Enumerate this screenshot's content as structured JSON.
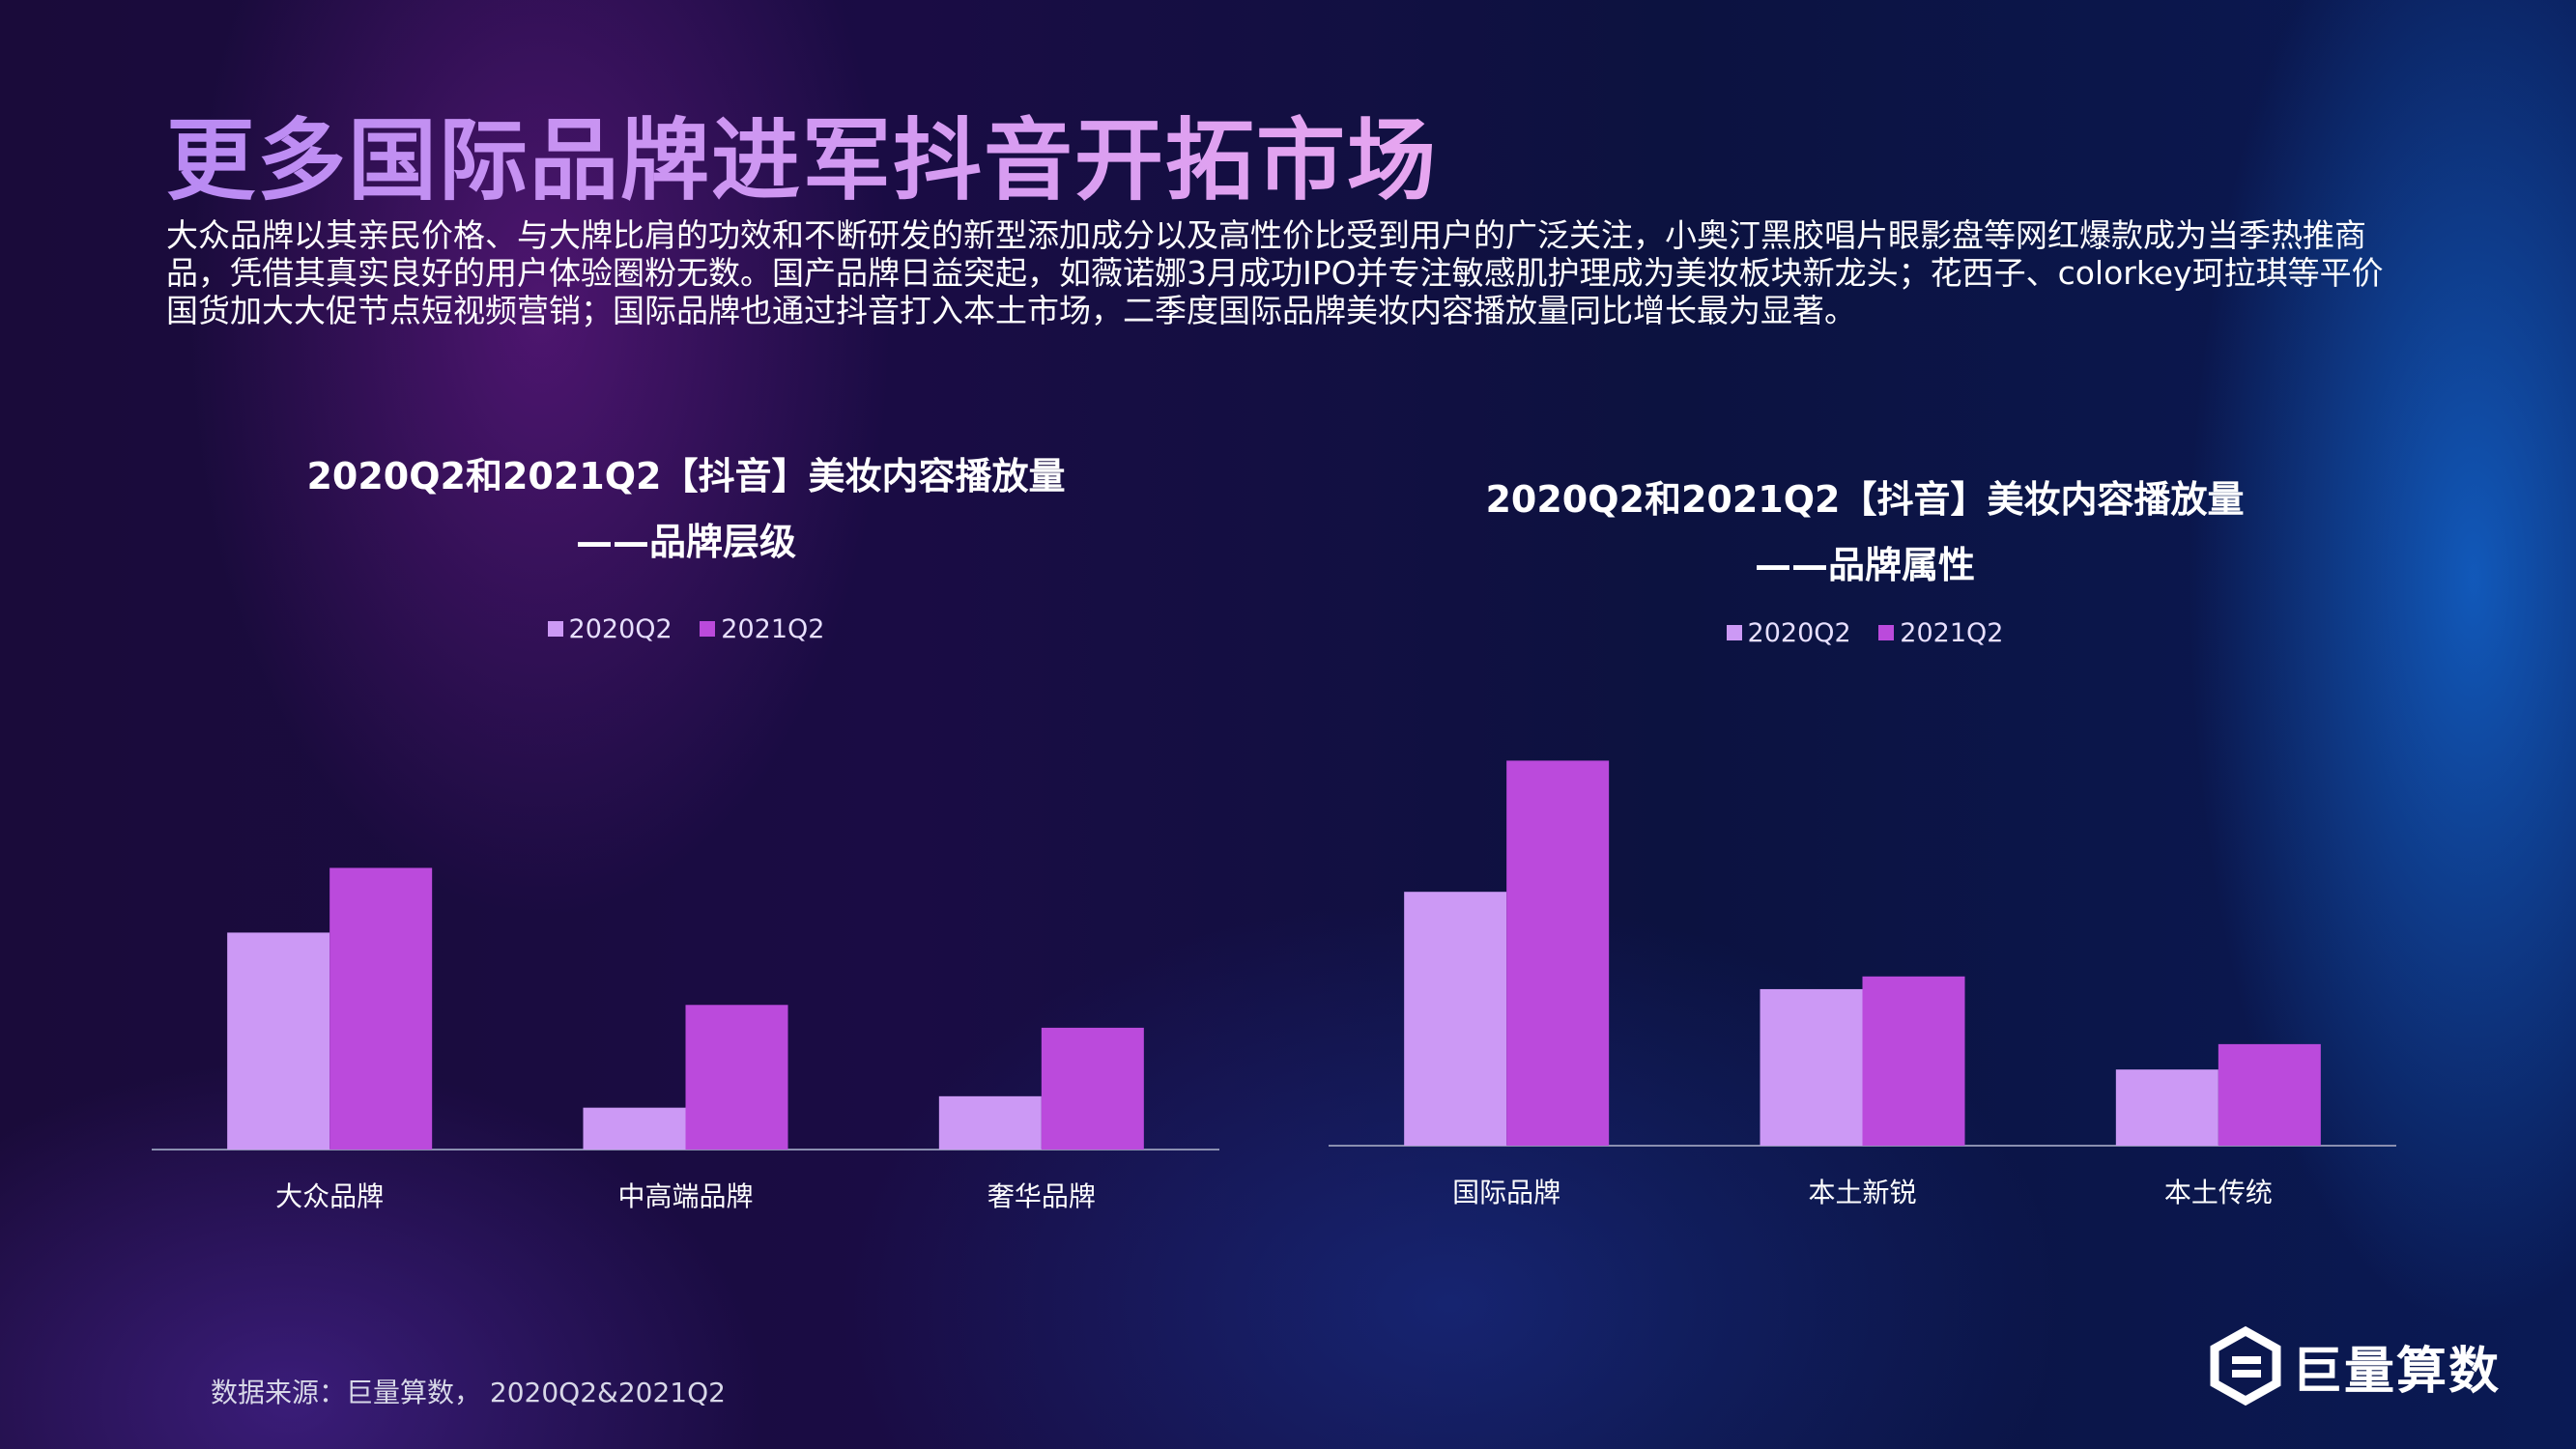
{
  "page": {
    "title": "更多国际品牌进军抖音开拓市场",
    "intro": "大众品牌以其亲民价格、与大牌比肩的功效和不断研发的新型添加成分以及高性价比受到用户的广泛关注，小奥汀黑胶唱片眼影盘等网红爆款成为当季热推商品，凭借其真实良好的用户体验圈粉无数。国产品牌日益突起，如薇诺娜3月成功IPO并专注敏感肌护理成为美妆板块新龙头；花西子、colorkey珂拉琪等平价国货加大大促节点短视频营销；国际品牌也通过抖音打入本土市场，二季度国际品牌美妆内容播放量同比增长最为显著。",
    "source": "数据来源：巨量算数， 2020Q2&2021Q2",
    "logo_text": "巨量算数"
  },
  "colors": {
    "series_2020": "#cc99f5",
    "series_2021": "#bb4adc",
    "axis": "#8a8fb0"
  },
  "chart_data": [
    {
      "type": "bar",
      "title_line1": "2020Q2和2021Q2【抖音】美妆内容播放量",
      "title_line2": "——品牌层级",
      "categories": [
        "大众品牌",
        "中高端品牌",
        "奢华品牌"
      ],
      "series": [
        {
          "name": "2020Q2",
          "values": [
            57,
            11,
            14
          ]
        },
        {
          "name": "2021Q2",
          "values": [
            74,
            38,
            32
          ]
        }
      ],
      "ylim": [
        0,
        100
      ],
      "grid": false,
      "legend": "top-center"
    },
    {
      "type": "bar",
      "title_line1": "2020Q2和2021Q2【抖音】美妆内容播放量",
      "title_line2": "——品牌属性",
      "categories": [
        "国际品牌",
        "本土新锐",
        "本土传统"
      ],
      "series": [
        {
          "name": "2020Q2",
          "values": [
            60,
            37,
            18
          ]
        },
        {
          "name": "2021Q2",
          "values": [
            91,
            40,
            24
          ]
        }
      ],
      "ylim": [
        0,
        100
      ],
      "grid": false,
      "legend": "top-center"
    }
  ]
}
